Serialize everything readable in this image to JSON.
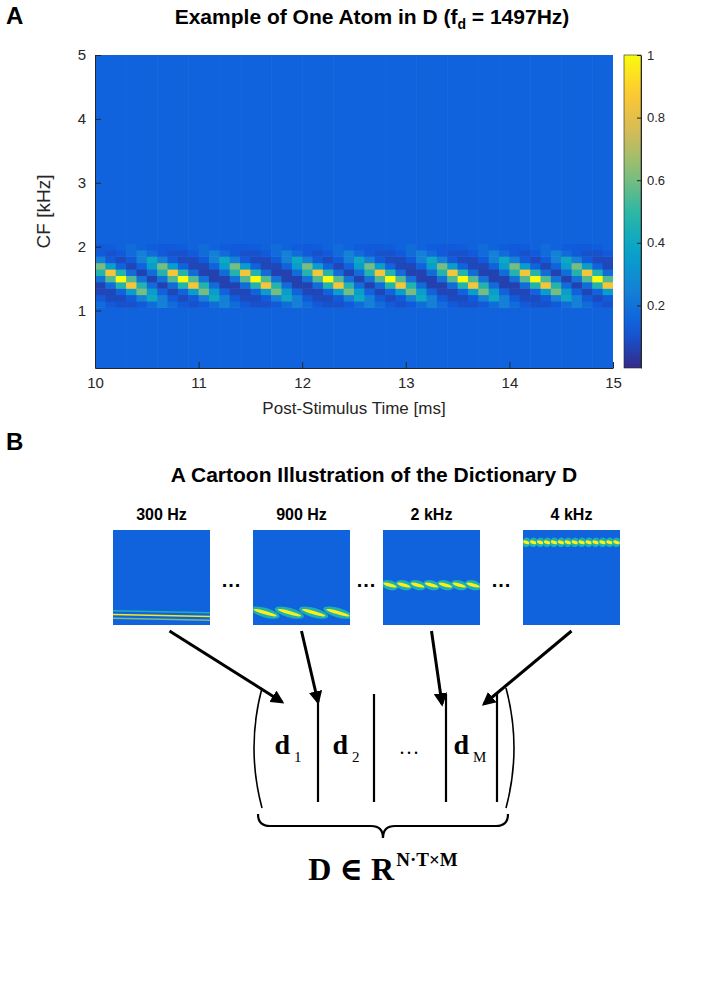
{
  "chart_data": {
    "type": "heatmap",
    "panel": "A",
    "title": {
      "text": "Example of One Atom in D (f",
      "subscript": "d",
      "suffix": " = 1497Hz)"
    },
    "xlabel": "Post-Stimulus Time [ms]",
    "ylabel": "CF [kHz]",
    "xlim": [
      10,
      15
    ],
    "xticks": [
      10,
      11,
      12,
      13,
      14,
      15
    ],
    "ylim": [
      0.1,
      5
    ],
    "yticks": [
      1,
      2,
      3,
      4,
      5
    ],
    "x_edges": [
      10,
      10.1,
      10.2,
      10.3,
      10.4,
      10.5,
      10.6,
      10.7,
      10.8,
      10.9,
      11,
      11.1,
      11.2,
      11.3,
      11.4,
      11.5,
      11.6,
      11.7,
      11.8,
      11.9,
      12,
      12.1,
      12.2,
      12.3,
      12.4,
      12.5,
      12.6,
      12.7,
      12.8,
      12.9,
      13,
      13.1,
      13.2,
      13.3,
      13.4,
      13.5,
      13.6,
      13.7,
      13.8,
      13.9,
      14,
      14.1,
      14.2,
      14.3,
      14.4,
      14.5,
      14.6,
      14.7,
      14.8,
      14.9,
      15
    ],
    "y_edges": [
      0.1,
      1.05,
      1.15,
      1.25,
      1.35,
      1.45,
      1.55,
      1.65,
      1.75,
      1.85,
      1.95,
      2.05,
      5
    ],
    "z": [
      [
        0.15,
        0.15,
        0.15,
        0.15,
        0.15,
        0.15,
        0.15,
        0.15,
        0.15,
        0.15,
        0.15,
        0.15,
        0.15,
        0.15,
        0.15,
        0.15,
        0.15,
        0.15,
        0.15,
        0.15,
        0.15,
        0.15,
        0.15,
        0.15,
        0.15,
        0.15,
        0.15,
        0.15,
        0.15,
        0.15,
        0.15,
        0.15,
        0.15,
        0.15,
        0.15,
        0.15,
        0.15,
        0.15,
        0.15,
        0.15,
        0.15,
        0.15,
        0.15,
        0.15,
        0.15,
        0.15,
        0.15,
        0.15,
        0.15,
        0.15
      ],
      [
        0.18,
        0.12,
        0.1,
        0.1,
        0.12,
        0.18,
        0.25,
        0.18,
        0.12,
        0.1,
        0.12,
        0.18,
        0.25,
        0.18,
        0.12,
        0.1,
        0.1,
        0.12,
        0.18,
        0.25,
        0.18,
        0.12,
        0.1,
        0.1,
        0.12,
        0.18,
        0.25,
        0.18,
        0.12,
        0.1,
        0.12,
        0.18,
        0.25,
        0.18,
        0.12,
        0.1,
        0.1,
        0.12,
        0.18,
        0.25,
        0.18,
        0.12,
        0.1,
        0.1,
        0.12,
        0.18,
        0.25,
        0.18,
        0.12,
        0.1
      ],
      [
        0.12,
        0.08,
        0.08,
        0.12,
        0.25,
        0.4,
        0.25,
        0.12,
        0.08,
        0.12,
        0.25,
        0.4,
        0.25,
        0.12,
        0.08,
        0.08,
        0.12,
        0.25,
        0.4,
        0.25,
        0.12,
        0.08,
        0.08,
        0.12,
        0.25,
        0.4,
        0.25,
        0.12,
        0.08,
        0.12,
        0.25,
        0.4,
        0.25,
        0.12,
        0.08,
        0.08,
        0.12,
        0.25,
        0.4,
        0.25,
        0.12,
        0.08,
        0.08,
        0.12,
        0.25,
        0.4,
        0.25,
        0.12,
        0.08,
        0.12
      ],
      [
        0.07,
        0.07,
        0.15,
        0.35,
        0.6,
        0.35,
        0.15,
        0.07,
        0.15,
        0.35,
        0.6,
        0.35,
        0.15,
        0.07,
        0.07,
        0.15,
        0.35,
        0.6,
        0.35,
        0.15,
        0.07,
        0.07,
        0.15,
        0.35,
        0.6,
        0.35,
        0.15,
        0.07,
        0.15,
        0.35,
        0.6,
        0.35,
        0.15,
        0.07,
        0.07,
        0.15,
        0.35,
        0.6,
        0.35,
        0.15,
        0.07,
        0.07,
        0.15,
        0.35,
        0.6,
        0.35,
        0.15,
        0.07,
        0.15,
        0.35
      ],
      [
        0.06,
        0.18,
        0.47,
        0.85,
        0.47,
        0.18,
        0.06,
        0.18,
        0.47,
        0.85,
        0.47,
        0.18,
        0.06,
        0.06,
        0.18,
        0.47,
        0.85,
        0.47,
        0.18,
        0.06,
        0.06,
        0.18,
        0.47,
        0.85,
        0.47,
        0.18,
        0.06,
        0.18,
        0.47,
        0.85,
        0.47,
        0.18,
        0.06,
        0.06,
        0.18,
        0.47,
        0.85,
        0.47,
        0.18,
        0.06,
        0.06,
        0.18,
        0.47,
        0.85,
        0.47,
        0.18,
        0.06,
        0.18,
        0.47,
        0.85
      ],
      [
        0.2,
        0.55,
        1,
        0.55,
        0.2,
        0.06,
        0.2,
        0.55,
        1,
        0.55,
        0.2,
        0.06,
        0.06,
        0.2,
        0.55,
        1,
        0.55,
        0.2,
        0.06,
        0.06,
        0.2,
        0.55,
        1,
        0.55,
        0.2,
        0.06,
        0.2,
        0.55,
        1,
        0.55,
        0.2,
        0.06,
        0.06,
        0.2,
        0.55,
        1,
        0.55,
        0.2,
        0.06,
        0.06,
        0.2,
        0.55,
        1,
        0.55,
        0.2,
        0.06,
        0.2,
        0.55,
        1,
        0.55
      ],
      [
        0.47,
        0.85,
        0.47,
        0.18,
        0.06,
        0.18,
        0.47,
        0.85,
        0.47,
        0.18,
        0.06,
        0.06,
        0.18,
        0.47,
        0.85,
        0.47,
        0.18,
        0.06,
        0.06,
        0.18,
        0.47,
        0.85,
        0.47,
        0.18,
        0.06,
        0.18,
        0.47,
        0.85,
        0.47,
        0.18,
        0.06,
        0.06,
        0.18,
        0.47,
        0.85,
        0.47,
        0.18,
        0.06,
        0.06,
        0.18,
        0.47,
        0.85,
        0.47,
        0.18,
        0.06,
        0.18,
        0.47,
        0.85,
        0.47,
        0.18
      ],
      [
        0.6,
        0.35,
        0.15,
        0.07,
        0.15,
        0.35,
        0.6,
        0.35,
        0.15,
        0.07,
        0.07,
        0.15,
        0.35,
        0.6,
        0.35,
        0.15,
        0.07,
        0.07,
        0.15,
        0.35,
        0.6,
        0.35,
        0.15,
        0.07,
        0.15,
        0.35,
        0.6,
        0.35,
        0.15,
        0.07,
        0.07,
        0.15,
        0.35,
        0.6,
        0.35,
        0.15,
        0.07,
        0.07,
        0.15,
        0.35,
        0.6,
        0.35,
        0.15,
        0.07,
        0.15,
        0.35,
        0.6,
        0.35,
        0.15,
        0.07
      ],
      [
        0.25,
        0.12,
        0.08,
        0.12,
        0.25,
        0.4,
        0.25,
        0.12,
        0.08,
        0.08,
        0.12,
        0.25,
        0.4,
        0.25,
        0.12,
        0.08,
        0.08,
        0.12,
        0.25,
        0.4,
        0.25,
        0.12,
        0.08,
        0.12,
        0.25,
        0.4,
        0.25,
        0.12,
        0.08,
        0.08,
        0.12,
        0.25,
        0.4,
        0.25,
        0.12,
        0.08,
        0.08,
        0.12,
        0.25,
        0.4,
        0.25,
        0.12,
        0.08,
        0.12,
        0.25,
        0.4,
        0.25,
        0.12,
        0.08,
        0.08
      ],
      [
        0.12,
        0.1,
        0.12,
        0.18,
        0.25,
        0.18,
        0.12,
        0.1,
        0.1,
        0.12,
        0.18,
        0.25,
        0.18,
        0.12,
        0.1,
        0.1,
        0.12,
        0.18,
        0.25,
        0.18,
        0.12,
        0.1,
        0.12,
        0.18,
        0.25,
        0.18,
        0.12,
        0.1,
        0.1,
        0.12,
        0.18,
        0.25,
        0.18,
        0.12,
        0.1,
        0.1,
        0.12,
        0.18,
        0.25,
        0.18,
        0.12,
        0.1,
        0.12,
        0.18,
        0.25,
        0.18,
        0.12,
        0.1,
        0.1,
        0.12
      ],
      [
        0.12,
        0.13,
        0.15,
        0.18,
        0.15,
        0.13,
        0.12,
        0.12,
        0.13,
        0.15,
        0.18,
        0.15,
        0.13,
        0.12,
        0.12,
        0.13,
        0.15,
        0.18,
        0.15,
        0.13,
        0.12,
        0.13,
        0.15,
        0.18,
        0.15,
        0.13,
        0.12,
        0.12,
        0.13,
        0.15,
        0.18,
        0.15,
        0.13,
        0.12,
        0.12,
        0.13,
        0.15,
        0.18,
        0.15,
        0.13,
        0.12,
        0.13,
        0.15,
        0.18,
        0.15,
        0.13,
        0.12,
        0.12,
        0.13,
        0.15
      ],
      [
        0.15,
        0.15,
        0.15,
        0.15,
        0.15,
        0.15,
        0.15,
        0.15,
        0.15,
        0.15,
        0.15,
        0.15,
        0.15,
        0.15,
        0.15,
        0.15,
        0.15,
        0.15,
        0.15,
        0.15,
        0.15,
        0.15,
        0.15,
        0.15,
        0.15,
        0.15,
        0.15,
        0.15,
        0.15,
        0.15,
        0.15,
        0.15,
        0.15,
        0.15,
        0.15,
        0.15,
        0.15,
        0.15,
        0.15,
        0.15,
        0.15,
        0.15,
        0.15,
        0.15,
        0.15,
        0.15,
        0.15,
        0.15,
        0.15,
        0.15
      ]
    ],
    "colorbar": {
      "range": [
        0,
        1
      ],
      "ticks": [
        0.2,
        0.4,
        0.6,
        0.8,
        1
      ]
    }
  },
  "diagram": {
    "panel": "B",
    "title": "A Cartoon Illustration of the Dictionary D",
    "atoms": [
      {
        "label": "300 Hz"
      },
      {
        "label": "900 Hz"
      },
      {
        "label": "2 kHz"
      },
      {
        "label": "4 kHz"
      }
    ],
    "ellipsis": "...",
    "matrix": {
      "columns": [
        {
          "symbol": "d",
          "subscript": "1"
        },
        {
          "symbol": "d",
          "subscript": "2"
        },
        {
          "symbol": "..."
        },
        {
          "symbol": "d",
          "subscript": "M"
        }
      ]
    },
    "caption": {
      "symbol": "D",
      "relation": "∈",
      "set": "R",
      "superscript": "N·T×M"
    }
  }
}
